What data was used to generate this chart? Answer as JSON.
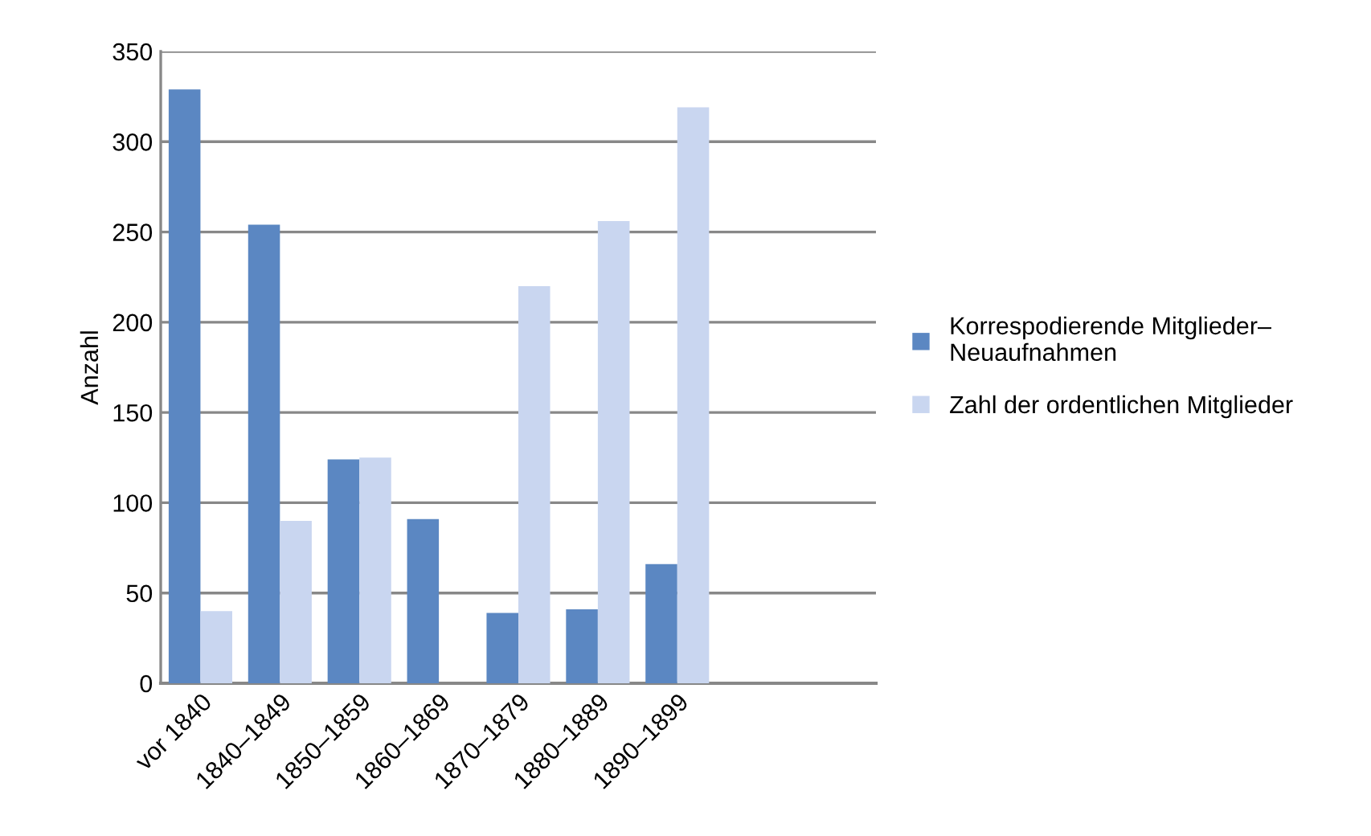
{
  "chart_data": {
    "type": "bar",
    "ylabel": "Anzahl",
    "categories": [
      "vor 1840",
      "1840–1849",
      "1850–1859",
      "1860–1869",
      "1870–1879",
      "1880–1889",
      "1890–1899",
      null,
      null
    ],
    "series": [
      {
        "name": "Korrespodierende Mitglieder–\nNeuaufnahmen",
        "color": "#5b87c2",
        "values": [
          329,
          254,
          124,
          91,
          39,
          41,
          66,
          null,
          null
        ]
      },
      {
        "name": "Zahl der ordentlichen Mitglieder",
        "color": "#c9d6f0",
        "values": [
          40,
          90,
          125,
          null,
          220,
          256,
          319,
          null,
          null
        ]
      }
    ],
    "ylim": [
      0,
      350
    ],
    "yticks": [
      0,
      50,
      100,
      150,
      200,
      250,
      300,
      350
    ],
    "grid": "y",
    "legend": "right"
  }
}
